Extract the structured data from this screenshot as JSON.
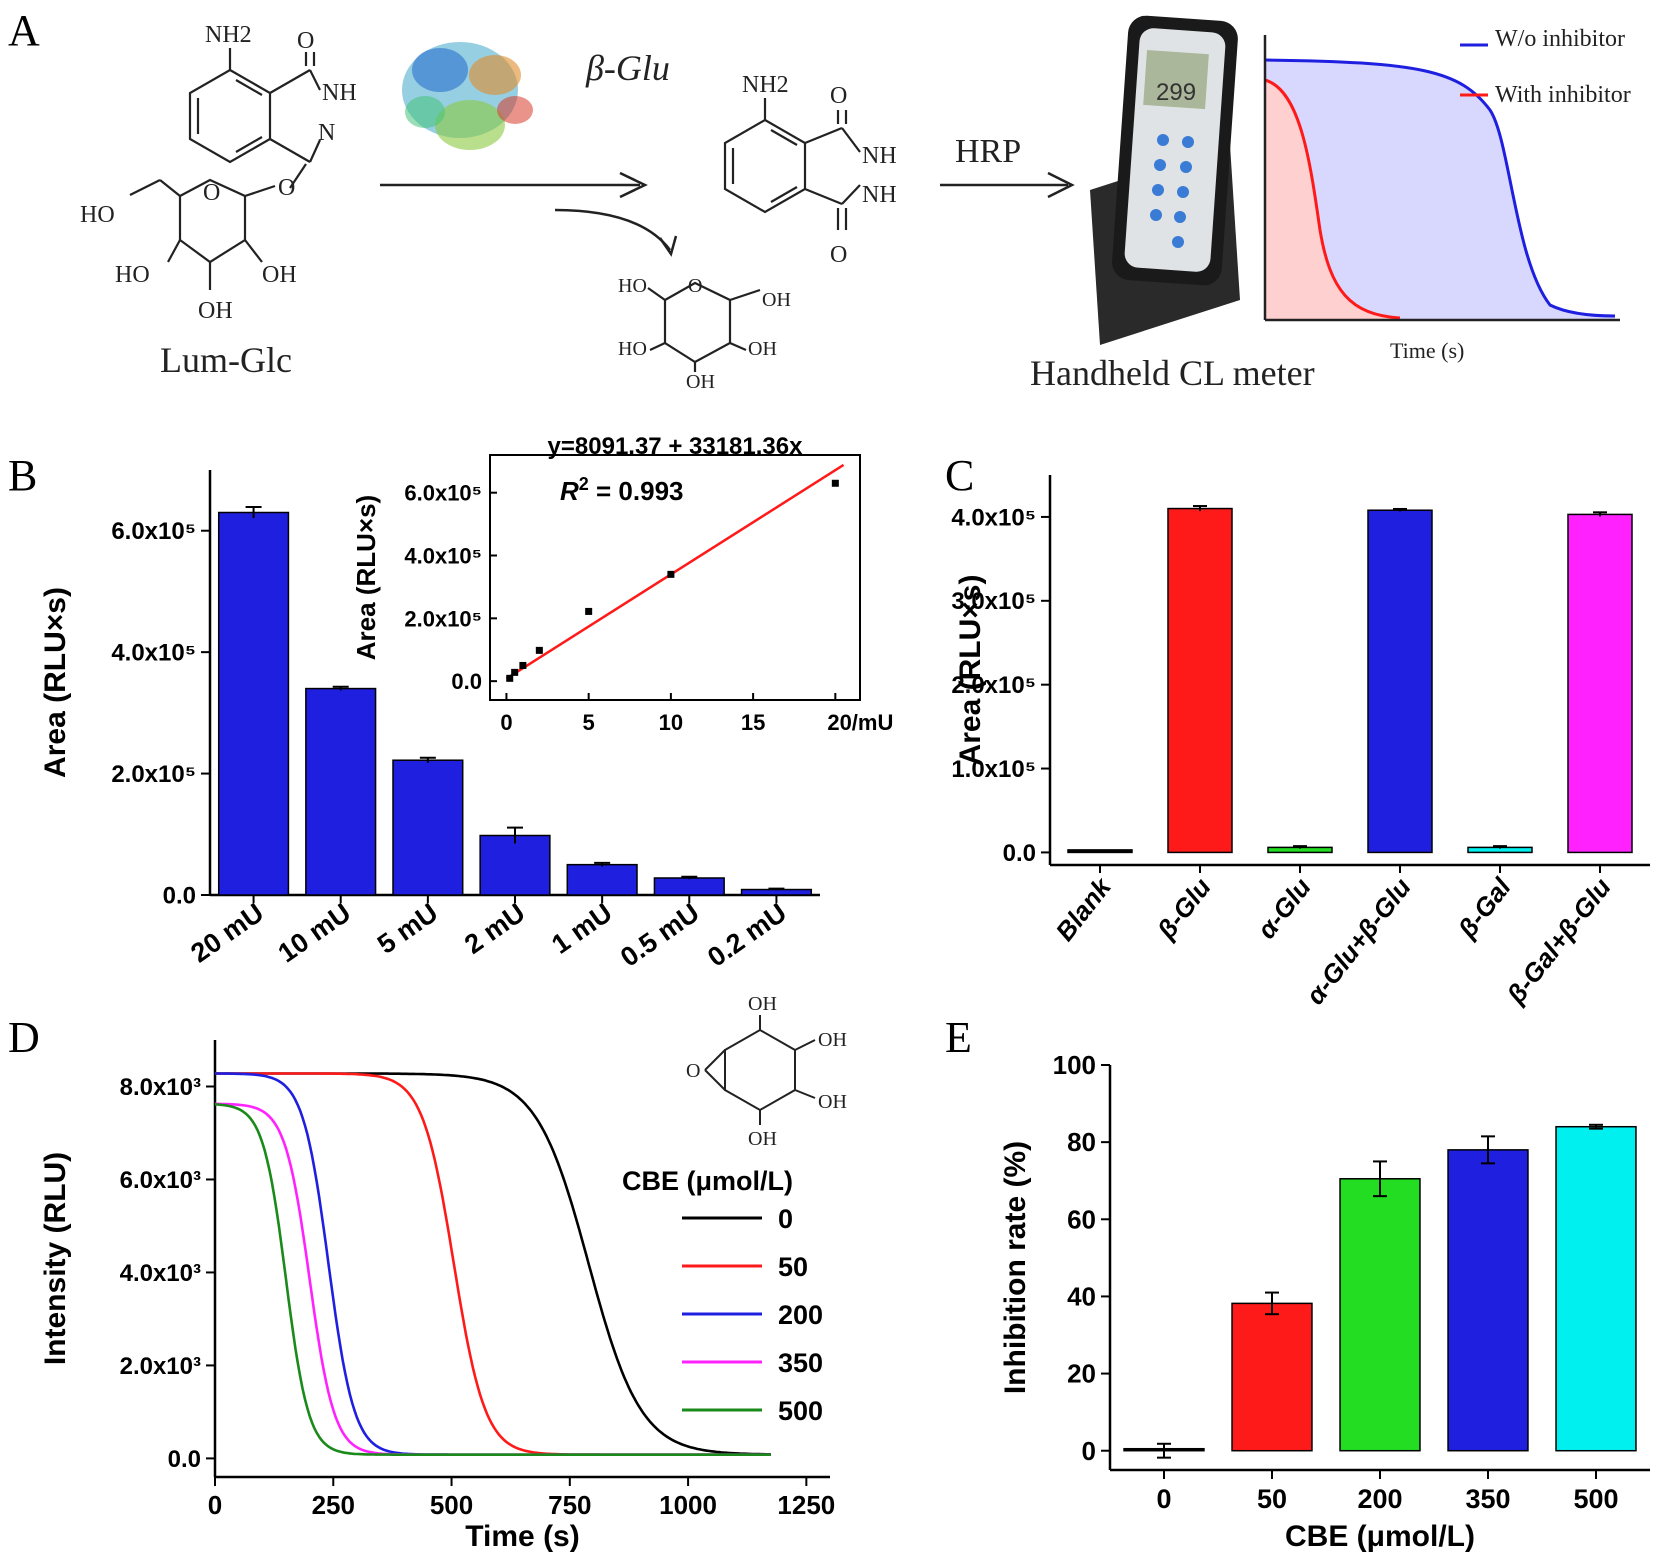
{
  "panels": {
    "A": "A",
    "B": "B",
    "C": "C",
    "D": "D",
    "E": "E"
  },
  "scheme": {
    "substrate_label": "Lum-Glc",
    "enzyme_label": "β-Glu",
    "hrp_label": "HRP",
    "meter_label": "Handheld CL meter",
    "meter_display": "299",
    "inset_time_label": "Time (s)",
    "legend_without": "W/o  inhibitor",
    "legend_with": "With  inhibitor",
    "atoms": {
      "nh2": "NH2",
      "nh": "NH",
      "n": "N",
      "o": "O",
      "ho": "HO",
      "oh": "OH"
    }
  },
  "colors": {
    "blue": "#1f1fe0",
    "red": "#ff1a1a",
    "green": "#22dd22",
    "cyan": "#00f0f0",
    "magenta": "#ff22ff",
    "black": "#000000",
    "darkgreen": "#1a8a1a"
  },
  "chart_data": [
    {
      "id": "B",
      "type": "bar",
      "categories": [
        "20 mU",
        "10 mU",
        "5 mU",
        "2 mU",
        "1 mU",
        "0.5 mU",
        "0.2 mU"
      ],
      "values": [
        630000,
        340000,
        222000,
        98000,
        50000,
        28000,
        9000
      ],
      "errors": [
        9000,
        3000,
        4000,
        13000,
        3000,
        2000,
        1500
      ],
      "ylabel": "Area (RLU×s)",
      "ylim": [
        0,
        700000
      ],
      "yticks": [
        0,
        200000,
        400000,
        600000
      ],
      "ytick_labels": [
        "0.0",
        "2.0x10⁵",
        "4.0x10⁵",
        "6.0x10⁵"
      ],
      "inset": {
        "type": "scatter",
        "equation": "y=8091.37 + 33181.36x",
        "r2_label": "R",
        "r2_sup": "2",
        "r2_value": " = 0.993",
        "x": [
          0.2,
          0.5,
          1,
          2,
          5,
          10,
          20
        ],
        "y": [
          9000,
          28000,
          50000,
          98000,
          222000,
          340000,
          630000
        ],
        "fit": {
          "intercept": 8091.37,
          "slope": 33181.36
        },
        "xlim": [
          -1,
          21.5
        ],
        "ylim": [
          -60000,
          720000
        ],
        "xticks": [
          0,
          5,
          10,
          15
        ],
        "xtick_labels": [
          "0",
          "5",
          "10",
          "15"
        ],
        "xlast_label": "20/mU",
        "ylabel": "Area (RLU×s)",
        "yticks": [
          0,
          200000,
          400000,
          600000
        ],
        "ytick_labels": [
          "0.0",
          "2.0x10⁵",
          "4.0x10⁵",
          "6.0x10⁵"
        ]
      }
    },
    {
      "id": "C",
      "type": "bar",
      "categories": [
        "Blank",
        "β-Glu",
        "α-Glu",
        "α-Glu+β-Glu",
        "β-Gal",
        "β-Gal+β-Glu"
      ],
      "values": [
        3000,
        410000,
        6000,
        408000,
        6000,
        403000
      ],
      "errors": [
        0,
        3000,
        1500,
        1500,
        1500,
        2500
      ],
      "colors": [
        "#000000",
        "#ff1a1a",
        "#22dd22",
        "#1f1fe0",
        "#00f0f0",
        "#ff22ff"
      ],
      "ylabel": "Area (RLU×s)",
      "ylim": [
        -15000,
        450000
      ],
      "yticks": [
        0,
        100000,
        200000,
        300000,
        400000
      ],
      "ytick_labels": [
        "0.0",
        "1.0x10⁵",
        "2.0x10⁵",
        "3.0x10⁵",
        "4.0x10⁵"
      ]
    },
    {
      "id": "D",
      "type": "line",
      "xlabel": "Time (s)",
      "ylabel": "Intensity (RLU)",
      "xlim": [
        0,
        1300
      ],
      "ylim": [
        -400,
        9000
      ],
      "xticks": [
        0,
        250,
        500,
        750,
        1000,
        1250
      ],
      "yticks": [
        0,
        2000,
        4000,
        6000,
        8000
      ],
      "ytick_labels": [
        "0.0",
        "2.0x10³",
        "4.0x10³",
        "6.0x10³",
        "8.0x10³"
      ],
      "legend_title": "CBE (μmol/L)",
      "x_end": 1175,
      "series": [
        {
          "name": "0",
          "color": "#000000",
          "start": 8200,
          "mid": 790,
          "width": 55
        },
        {
          "name": "50",
          "color": "#ff1a1a",
          "start": 8200,
          "mid": 505,
          "width": 33
        },
        {
          "name": "200",
          "color": "#1f1fe0",
          "start": 8200,
          "mid": 240,
          "width": 27
        },
        {
          "name": "350",
          "color": "#ff22ff",
          "start": 7550,
          "mid": 200,
          "width": 26
        },
        {
          "name": "500",
          "color": "#1a8a1a",
          "start": 7550,
          "mid": 150,
          "width": 24
        }
      ]
    },
    {
      "id": "E",
      "type": "bar",
      "categories": [
        "0",
        "50",
        "200",
        "350",
        "500"
      ],
      "values": [
        0,
        38.2,
        70.5,
        78.0,
        84.0
      ],
      "errors": [
        1.8,
        2.8,
        4.5,
        3.5,
        0.5
      ],
      "colors": [
        "#000000",
        "#ff1a1a",
        "#22dd22",
        "#1f1fe0",
        "#00f0f0"
      ],
      "xlabel": "CBE (μmol/L)",
      "ylabel": "Inhibition rate (%)",
      "ylim": [
        -5,
        100
      ],
      "yticks": [
        0,
        20,
        40,
        60,
        80,
        100
      ]
    }
  ]
}
